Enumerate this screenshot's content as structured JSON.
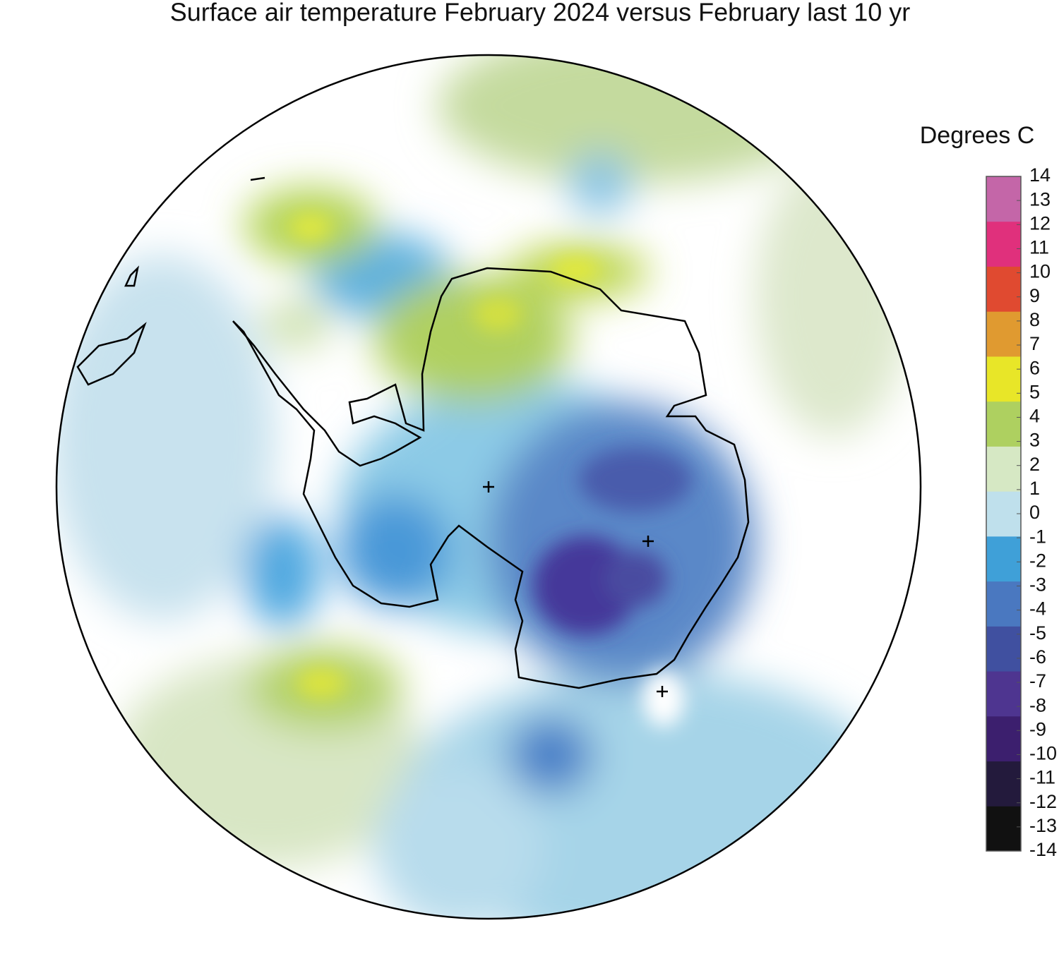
{
  "title": "Surface air temperature February 2024 versus February last 10 yr",
  "colorbar": {
    "title": "Degrees C",
    "lim": [
      -14,
      14
    ],
    "ticks": [
      14,
      13,
      12,
      11,
      10,
      9,
      8,
      7,
      6,
      5,
      4,
      3,
      2,
      1,
      0,
      -1,
      -2,
      -3,
      -4,
      -5,
      -6,
      -7,
      -8,
      -9,
      -10,
      -11,
      -12,
      -13,
      -14
    ],
    "colors": [
      "#111111",
      "#231a3c",
      "#3c1f6e",
      "#4e3590",
      "#4050a0",
      "#4a78c0",
      "#3fa0d8",
      "#bfe0ec",
      "#d6e8c4",
      "#aed060",
      "#e8e628",
      "#e09a30",
      "#e04a30",
      "#e0307c",
      "#c466a8"
    ]
  }
}
